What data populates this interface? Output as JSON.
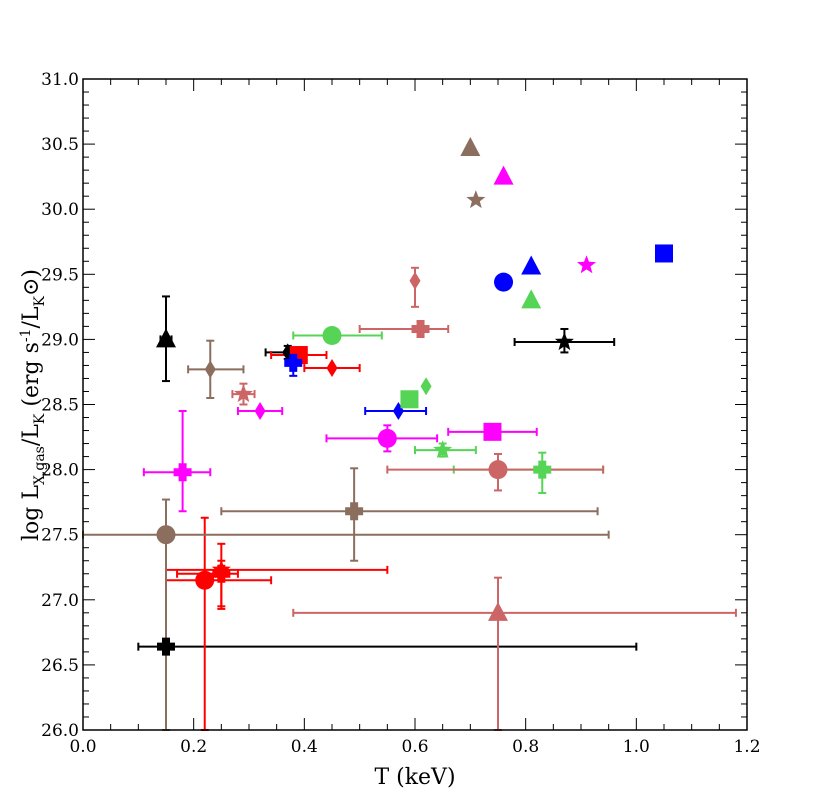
{
  "chart_data": {
    "type": "scatter",
    "title": "",
    "xlabel": {
      "main": "T (keV)"
    },
    "ylabel": {
      "log": "log L",
      "x_sub": "X,gas",
      "slash": "/L",
      "k_sub": "K",
      "units": " (erg s",
      "exp": "-1",
      "units2": "/L",
      "sun_sub": "K",
      "close": ")"
    },
    "xlim": [
      0.0,
      1.2
    ],
    "ylim": [
      26.0,
      31.0
    ],
    "xticks": [
      "0.0",
      "0.2",
      "0.4",
      "0.6",
      "0.8",
      "1.0",
      "1.2"
    ],
    "yticks": [
      "26.0",
      "26.5",
      "27.0",
      "27.5",
      "28.0",
      "28.5",
      "29.0",
      "29.5",
      "30.0",
      "30.5",
      "31.0"
    ],
    "grid": false,
    "legend": "none",
    "colors": {
      "black": "#000000",
      "red": "#ff0000",
      "blue": "#0000ff",
      "green": "#55d455",
      "magenta": "#ff00ff",
      "brown": "#8b6e5e",
      "rose": "#cc6666"
    },
    "points": [
      {
        "id": "black-triangle",
        "color": "black",
        "marker": "triangle",
        "x": 0.15,
        "y": 29.0,
        "xerr": [
          0.14,
          0.16
        ],
        "yerr": [
          28.68,
          29.33
        ]
      },
      {
        "id": "black-diamond",
        "color": "black",
        "marker": "diamond",
        "x": 0.37,
        "y": 28.9,
        "xerr": [
          0.33,
          0.4
        ],
        "yerr": [
          28.85,
          28.95
        ]
      },
      {
        "id": "black-star",
        "color": "black",
        "marker": "star",
        "x": 0.87,
        "y": 28.98,
        "xerr": [
          0.78,
          0.96
        ],
        "yerr": [
          28.9,
          29.08
        ]
      },
      {
        "id": "black-plus",
        "color": "black",
        "marker": "plus",
        "x": 0.15,
        "y": 26.64,
        "xerr": [
          0.1,
          1.0
        ],
        "yerr": [
          26.6,
          26.68
        ]
      },
      {
        "id": "red-square",
        "color": "red",
        "marker": "square",
        "x": 0.39,
        "y": 28.88,
        "xerr": [
          0.34,
          0.44
        ],
        "yerr": [
          28.84,
          28.92
        ]
      },
      {
        "id": "red-diamond",
        "color": "red",
        "marker": "diamond",
        "x": 0.45,
        "y": 28.78,
        "xerr": [
          0.4,
          0.5
        ]
      },
      {
        "id": "red-star",
        "color": "red",
        "marker": "star",
        "x": 0.25,
        "y": 27.23,
        "xerr": [
          0.15,
          0.55
        ],
        "yerr": [
          26.93,
          27.43
        ]
      },
      {
        "id": "red-plus",
        "color": "red",
        "marker": "plus",
        "x": 0.25,
        "y": 27.2,
        "xerr": [
          0.17,
          0.28
        ],
        "yerr": [
          26.95,
          27.3
        ]
      },
      {
        "id": "red-circle",
        "color": "red",
        "marker": "circle",
        "x": 0.22,
        "y": 27.15,
        "xerr": [
          0.15,
          0.34
        ],
        "yerr": [
          26.0,
          27.63
        ]
      },
      {
        "id": "blue-plus",
        "color": "blue",
        "marker": "plus",
        "x": 0.38,
        "y": 28.82,
        "yerr": [
          28.72,
          28.9
        ]
      },
      {
        "id": "blue-diamond",
        "color": "blue",
        "marker": "diamond",
        "x": 0.57,
        "y": 28.45,
        "xerr": [
          0.51,
          0.62
        ]
      },
      {
        "id": "blue-circle",
        "color": "blue",
        "marker": "circle",
        "x": 0.76,
        "y": 29.44
      },
      {
        "id": "blue-triangle",
        "color": "blue",
        "marker": "triangle",
        "x": 0.81,
        "y": 29.56
      },
      {
        "id": "blue-square",
        "color": "blue",
        "marker": "square",
        "x": 1.05,
        "y": 29.66
      },
      {
        "id": "green-circle",
        "color": "green",
        "marker": "circle",
        "x": 0.45,
        "y": 29.03,
        "xerr": [
          0.38,
          0.54
        ],
        "yerr": [
          28.99,
          29.07
        ]
      },
      {
        "id": "green-square",
        "color": "green",
        "marker": "square",
        "x": 0.59,
        "y": 28.54
      },
      {
        "id": "green-diamond",
        "color": "green",
        "marker": "diamond",
        "x": 0.62,
        "y": 28.64
      },
      {
        "id": "green-star",
        "color": "green",
        "marker": "star",
        "x": 0.65,
        "y": 28.15,
        "xerr": [
          0.6,
          0.71
        ],
        "yerr": [
          28.1,
          28.2
        ]
      },
      {
        "id": "green-triangle",
        "color": "green",
        "marker": "triangle",
        "x": 0.81,
        "y": 29.3
      },
      {
        "id": "green-plus",
        "color": "green",
        "marker": "plus",
        "x": 0.83,
        "y": 28.0,
        "xerr": [
          0.67,
          0.94
        ],
        "yerr": [
          27.82,
          28.13
        ]
      },
      {
        "id": "magenta-plus",
        "color": "magenta",
        "marker": "plus",
        "x": 0.18,
        "y": 27.98,
        "xerr": [
          0.11,
          0.23
        ],
        "yerr": [
          27.68,
          28.45
        ]
      },
      {
        "id": "magenta-diamond",
        "color": "magenta",
        "marker": "diamond",
        "x": 0.32,
        "y": 28.45,
        "xerr": [
          0.28,
          0.36
        ]
      },
      {
        "id": "magenta-circle",
        "color": "magenta",
        "marker": "circle",
        "x": 0.55,
        "y": 28.24,
        "xerr": [
          0.44,
          0.64
        ],
        "yerr": [
          28.14,
          28.34
        ]
      },
      {
        "id": "magenta-square",
        "color": "magenta",
        "marker": "square",
        "x": 0.74,
        "y": 28.29,
        "xerr": [
          0.66,
          0.82
        ]
      },
      {
        "id": "magenta-triangle",
        "color": "magenta",
        "marker": "triangle",
        "x": 0.76,
        "y": 30.25
      },
      {
        "id": "magenta-star",
        "color": "magenta",
        "marker": "star",
        "x": 0.91,
        "y": 29.57
      },
      {
        "id": "brown-diamond",
        "color": "brown",
        "marker": "diamond",
        "x": 0.23,
        "y": 28.77,
        "xerr": [
          0.19,
          0.29
        ],
        "yerr": [
          28.55,
          28.99
        ]
      },
      {
        "id": "brown-circle",
        "color": "brown",
        "marker": "circle",
        "x": 0.15,
        "y": 27.5,
        "xerr": [
          0.0,
          0.95
        ],
        "yerr": [
          26.0,
          27.77
        ]
      },
      {
        "id": "brown-plus",
        "color": "brown",
        "marker": "plus",
        "x": 0.49,
        "y": 27.68,
        "xerr": [
          0.25,
          0.93
        ],
        "yerr": [
          27.3,
          28.01
        ]
      },
      {
        "id": "brown-triangle",
        "color": "brown",
        "marker": "triangle",
        "x": 0.7,
        "y": 30.47
      },
      {
        "id": "brown-star",
        "color": "brown",
        "marker": "star",
        "x": 0.71,
        "y": 30.07
      },
      {
        "id": "rose-star",
        "color": "rose",
        "marker": "star",
        "x": 0.29,
        "y": 28.58,
        "xerr": [
          0.27,
          0.31
        ],
        "yerr": [
          28.5,
          28.66
        ]
      },
      {
        "id": "rose-diamond",
        "color": "rose",
        "marker": "diamond",
        "x": 0.6,
        "y": 29.45,
        "yerr": [
          29.25,
          29.55
        ]
      },
      {
        "id": "rose-plus",
        "color": "rose",
        "marker": "plus",
        "x": 0.61,
        "y": 29.08,
        "xerr": [
          0.5,
          0.66
        ]
      },
      {
        "id": "rose-circle",
        "color": "rose",
        "marker": "circle",
        "x": 0.75,
        "y": 28.0,
        "xerr": [
          0.55,
          0.94
        ],
        "yerr": [
          27.84,
          28.12
        ]
      },
      {
        "id": "rose-triangle",
        "color": "rose",
        "marker": "triangle",
        "x": 0.75,
        "y": 26.9,
        "xerr": [
          0.38,
          1.18
        ],
        "yerr": [
          26.0,
          27.17
        ]
      }
    ]
  }
}
